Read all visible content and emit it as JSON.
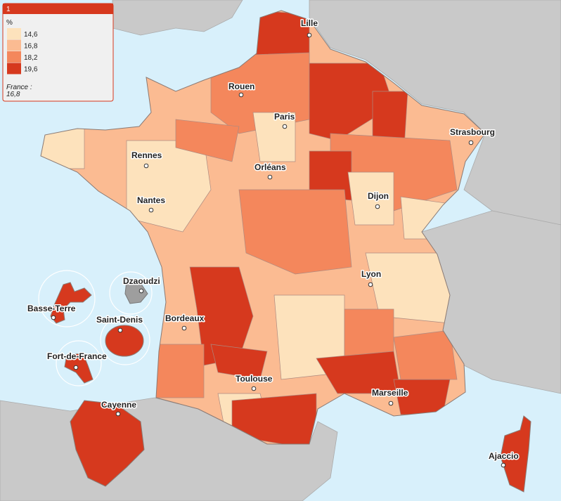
{
  "legend": {
    "title": "1",
    "unit": "%",
    "classes": [
      {
        "label": "14,6",
        "color": "#fde2bc"
      },
      {
        "label": "16,8",
        "color": "#fbbb92"
      },
      {
        "label": "18,2",
        "color": "#f4875c"
      },
      {
        "label": "19,6",
        "color": "#d6391e"
      }
    ],
    "note": "France :",
    "note_value": "16,8"
  },
  "cities": [
    "Lille",
    "Rouen",
    "Paris",
    "Strasbourg",
    "Rennes",
    "Orléans",
    "Nantes",
    "Dijon",
    "Lyon",
    "Bordeaux",
    "Toulouse",
    "Marseille",
    "Ajaccio",
    "Cayenne",
    "Dzaoudzi",
    "Basse-Terre",
    "Saint-Denis",
    "Fort-de-France"
  ]
}
